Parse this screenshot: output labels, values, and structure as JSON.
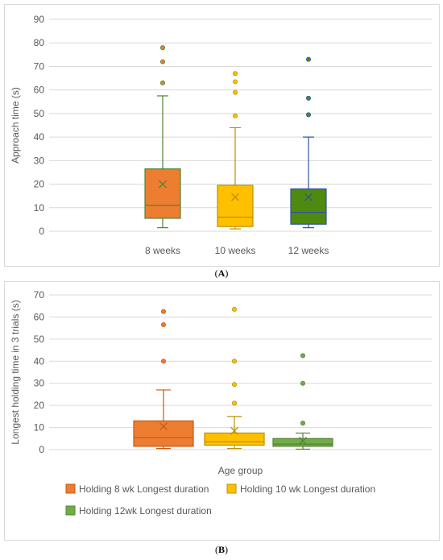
{
  "captions": {
    "a": "A",
    "b": "B"
  },
  "chart_data": [
    {
      "type": "box",
      "title": "",
      "xlabel": "",
      "ylabel": "Approach time (s)",
      "ylim": [
        0,
        90
      ],
      "yticks": [
        0,
        10,
        20,
        30,
        40,
        50,
        60,
        70,
        80,
        90
      ],
      "categories": [
        "8 weeks",
        "10 weeks",
        "12 weeks"
      ],
      "series": [
        {
          "color": "#ed7d31",
          "line": "#548235",
          "whisker_low": 1.5,
          "q1": 5.5,
          "median": 11,
          "q3": 26.5,
          "whisker_high": 57.5,
          "mean": 20,
          "outliers": [
            63,
            72,
            78
          ]
        },
        {
          "color": "#ffc000",
          "line": "#bf9000",
          "whisker_low": 1,
          "q1": 2,
          "median": 6,
          "q3": 19.5,
          "whisker_high": 44,
          "mean": 14.5,
          "outliers": [
            49,
            59,
            63.5,
            67
          ]
        },
        {
          "color": "#4f8a10",
          "line": "#2e5597",
          "whisker_low": 1.5,
          "q1": 3,
          "median": 8,
          "q3": 18,
          "whisker_high": 40,
          "mean": 14.5,
          "outliers": [
            49.5,
            56.5,
            73
          ]
        }
      ]
    },
    {
      "type": "box",
      "title": "",
      "xlabel": "Age group",
      "ylabel": "Longest holding time in 3 trials (s)",
      "ylim": [
        0,
        70
      ],
      "yticks": [
        0,
        10,
        20,
        30,
        40,
        50,
        60,
        70
      ],
      "legend_position": "bottom",
      "series": [
        {
          "name": "Holding 8 wk Longest duration",
          "color": "#ed7d31",
          "line": "#c55a11",
          "whisker_low": 0.5,
          "q1": 1.5,
          "median": 5.5,
          "q3": 13,
          "whisker_high": 27,
          "mean": 10.5,
          "outliers": [
            40,
            56.5,
            62.5
          ]
        },
        {
          "name": "Holding 10 wk Longest duration",
          "color": "#ffc000",
          "line": "#bf9000",
          "whisker_low": 0.5,
          "q1": 2,
          "median": 3.5,
          "q3": 7.5,
          "whisker_high": 15,
          "mean": 8.5,
          "outliers": [
            21,
            29.5,
            40,
            63.5
          ]
        },
        {
          "name": "Holding 12wk Longest duration",
          "color": "#70ad47",
          "line": "#548235",
          "whisker_low": 0.2,
          "q1": 1.5,
          "median": 2.5,
          "q3": 5,
          "whisker_high": 7.5,
          "mean": 4,
          "outliers": [
            12,
            30,
            42.5
          ]
        }
      ]
    }
  ]
}
